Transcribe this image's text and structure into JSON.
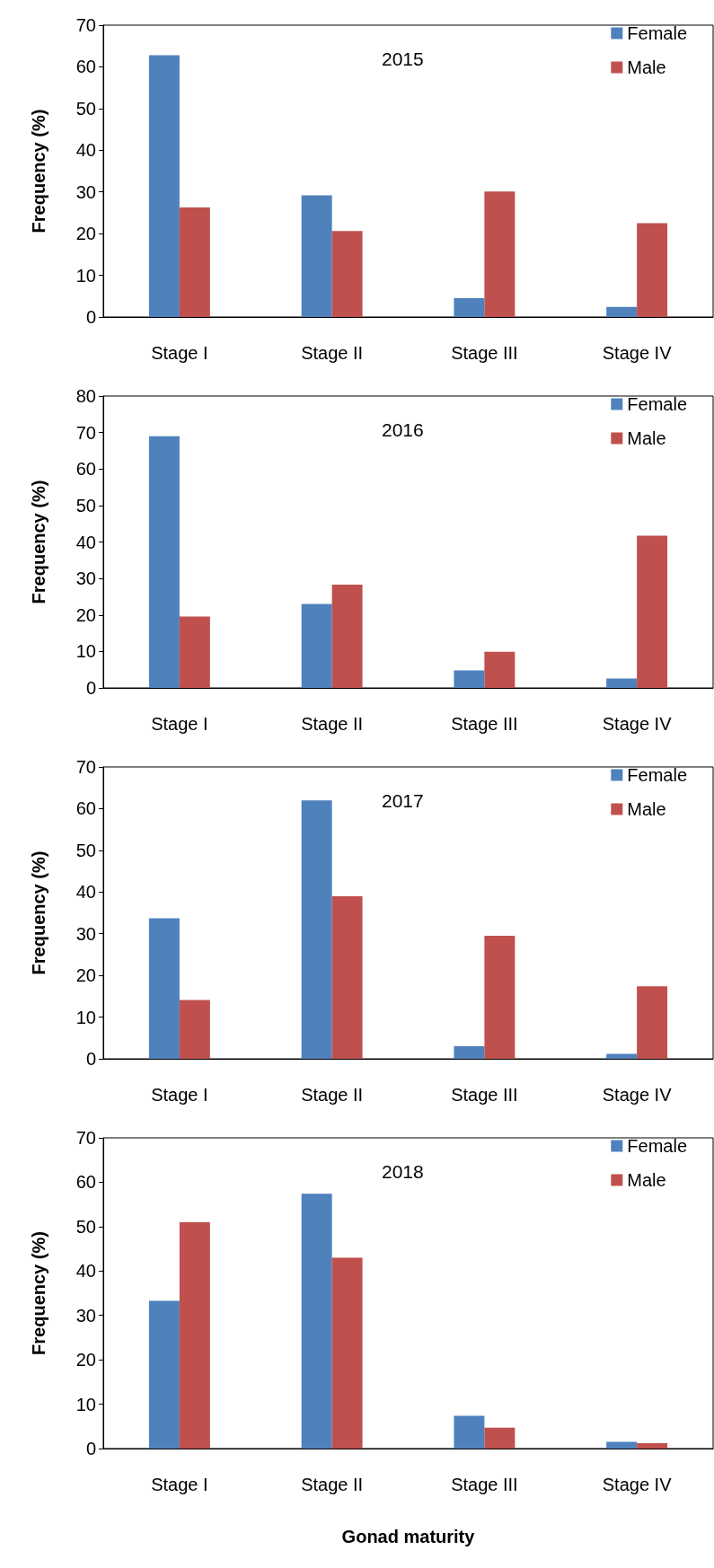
{
  "chart_data": [
    {
      "type": "bar",
      "title": "2015",
      "ylabel": "Frequency (%)",
      "categories": [
        "Stage I",
        "Stage II",
        "Stage III",
        "Stage IV"
      ],
      "series": [
        {
          "name": "Female",
          "color": "#4f81bd",
          "values": [
            62.8,
            29.2,
            4.5,
            2.4
          ]
        },
        {
          "name": "Male",
          "color": "#c0504d",
          "values": [
            26.3,
            20.6,
            30.1,
            22.5
          ]
        }
      ],
      "ylim": [
        0,
        70
      ],
      "yticks": [
        0,
        10,
        20,
        30,
        40,
        50,
        60,
        70
      ],
      "grid": false,
      "legend": "top right"
    },
    {
      "type": "bar",
      "title": "2016",
      "ylabel": "Frequency (%)",
      "categories": [
        "Stage I",
        "Stage II",
        "Stage III",
        "Stage IV"
      ],
      "series": [
        {
          "name": "Female",
          "color": "#4f81bd",
          "values": [
            69.0,
            23.0,
            4.8,
            2.6
          ]
        },
        {
          "name": "Male",
          "color": "#c0504d",
          "values": [
            19.6,
            28.3,
            9.9,
            41.7
          ]
        }
      ],
      "ylim": [
        0,
        80
      ],
      "yticks": [
        0,
        10,
        20,
        30,
        40,
        50,
        60,
        70,
        80
      ],
      "grid": false,
      "legend": "top right"
    },
    {
      "type": "bar",
      "title": "2017",
      "ylabel": "Frequency (%)",
      "categories": [
        "Stage I",
        "Stage II",
        "Stage III",
        "Stage IV"
      ],
      "series": [
        {
          "name": "Female",
          "color": "#4f81bd",
          "values": [
            33.7,
            62.0,
            3.0,
            1.2
          ]
        },
        {
          "name": "Male",
          "color": "#c0504d",
          "values": [
            14.1,
            39.0,
            29.5,
            17.4
          ]
        }
      ],
      "ylim": [
        0,
        70
      ],
      "yticks": [
        0,
        10,
        20,
        30,
        40,
        50,
        60,
        70
      ],
      "grid": false,
      "legend": "top right"
    },
    {
      "type": "bar",
      "title": "2018",
      "ylabel": "Frequency (%)",
      "xlabel": "Gonad maturity",
      "categories": [
        "Stage I",
        "Stage II",
        "Stage III",
        "Stage IV"
      ],
      "series": [
        {
          "name": "Female",
          "color": "#4f81bd",
          "values": [
            33.3,
            57.4,
            7.4,
            1.5
          ]
        },
        {
          "name": "Male",
          "color": "#c0504d",
          "values": [
            51.0,
            43.0,
            4.7,
            1.2
          ]
        }
      ],
      "ylim": [
        0,
        70
      ],
      "yticks": [
        0,
        10,
        20,
        30,
        40,
        50,
        60,
        70
      ],
      "grid": false,
      "legend": "top right"
    }
  ]
}
